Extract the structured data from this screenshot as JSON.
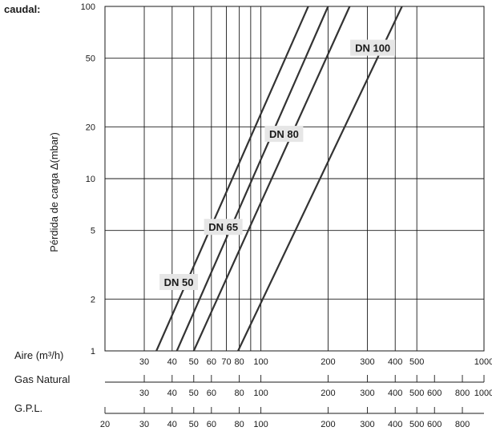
{
  "chart_data": {
    "type": "line",
    "title": "caudal:",
    "ylabel": "Pérdida de carga Δ(mbar)",
    "yscale": "log",
    "xscale": "log",
    "ylim": [
      1,
      100
    ],
    "xlim": [
      20,
      1000
    ],
    "y_ticks": [
      1,
      2,
      5,
      10,
      20,
      50,
      100
    ],
    "x_gridlines": [
      30,
      40,
      50,
      60,
      70,
      80,
      90,
      100,
      200,
      300,
      400,
      500,
      1000
    ],
    "grid": true,
    "scales": [
      {
        "name": "Aire  (m³/h)",
        "ticks": [
          30,
          40,
          50,
          60,
          70,
          80,
          100,
          200,
          300,
          400,
          500,
          1000
        ],
        "labels": [
          "30",
          "40",
          "50",
          "60",
          "70",
          "80",
          "100",
          "200",
          "300",
          "400",
          "500",
          "1000"
        ]
      },
      {
        "name": "Gas Natural",
        "ticks": [
          30,
          40,
          50,
          60,
          80,
          100,
          200,
          300,
          400,
          500,
          600,
          800,
          1000
        ],
        "labels": [
          "30",
          "40",
          "50",
          "60",
          "80",
          "100",
          "200",
          "300",
          "400",
          "500",
          "600",
          "800",
          "1000"
        ]
      },
      {
        "name": "G.P.L.",
        "ticks": [
          20,
          30,
          40,
          50,
          60,
          80,
          100,
          200,
          300,
          400,
          500,
          600,
          800
        ],
        "labels": [
          "20",
          "30",
          "40",
          "50",
          "60",
          "80",
          "100",
          "200",
          "300",
          "400",
          "500",
          "600",
          "800"
        ]
      }
    ],
    "series": [
      {
        "name": "DN 50",
        "x": [
          34,
          163
        ],
        "y": [
          1,
          100
        ]
      },
      {
        "name": "DN 65",
        "x": [
          42,
          200
        ],
        "y": [
          1,
          100
        ]
      },
      {
        "name": "DN 80",
        "x": [
          50,
          250
        ],
        "y": [
          1,
          100
        ]
      },
      {
        "name": "DN 100",
        "x": [
          79,
          429
        ],
        "y": [
          1,
          100
        ]
      }
    ]
  }
}
